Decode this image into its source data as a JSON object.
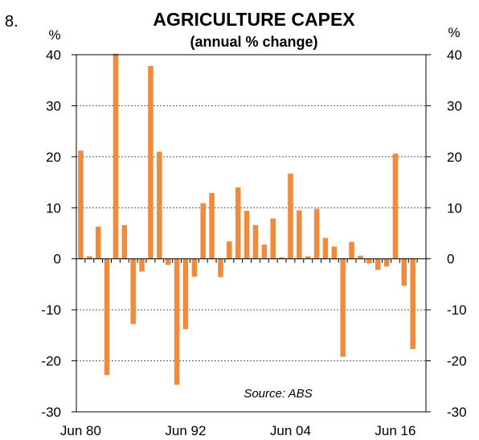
{
  "figure_number": "8.",
  "chart_data": {
    "type": "bar",
    "title": "AGRICULTURE CAPEX",
    "subtitle": "(annual % change)",
    "ylabel_left": "%",
    "ylabel_right": "%",
    "xlabel": "",
    "ylim": [
      -30,
      40
    ],
    "yticks": [
      -30,
      -20,
      -10,
      0,
      10,
      20,
      30,
      40
    ],
    "grid": "horizontal dashed",
    "bar_color": "#F08A3C",
    "x_tick_labels": [
      {
        "label": "Jun 80",
        "year": 1980
      },
      {
        "label": "Jun 92",
        "year": 1992
      },
      {
        "label": "Jun 04",
        "year": 2004
      },
      {
        "label": "Jun 16",
        "year": 2016
      }
    ],
    "x": [
      1980,
      1981,
      1982,
      1983,
      1984,
      1985,
      1986,
      1987,
      1988,
      1989,
      1990,
      1991,
      1992,
      1993,
      1994,
      1995,
      1996,
      1997,
      1998,
      1999,
      2000,
      2001,
      2002,
      2003,
      2004,
      2005,
      2006,
      2007,
      2008,
      2009,
      2010,
      2011,
      2012,
      2013,
      2014,
      2015,
      2016,
      2017,
      2018,
      2019
    ],
    "values": [
      21.2,
      0.5,
      6.3,
      -22.8,
      40.2,
      6.6,
      -12.8,
      -2.5,
      37.8,
      21.0,
      -1.2,
      -24.7,
      -13.8,
      -3.5,
      10.9,
      12.9,
      -3.6,
      3.4,
      14.0,
      9.4,
      6.6,
      2.8,
      7.9,
      0.3,
      16.7,
      9.5,
      0.5,
      9.8,
      4.1,
      2.4,
      -19.2,
      3.3,
      0.6,
      -0.9,
      -2.2,
      -1.5,
      20.6,
      -5.3,
      -17.7,
      null
    ],
    "annotation": "Source: ABS"
  }
}
